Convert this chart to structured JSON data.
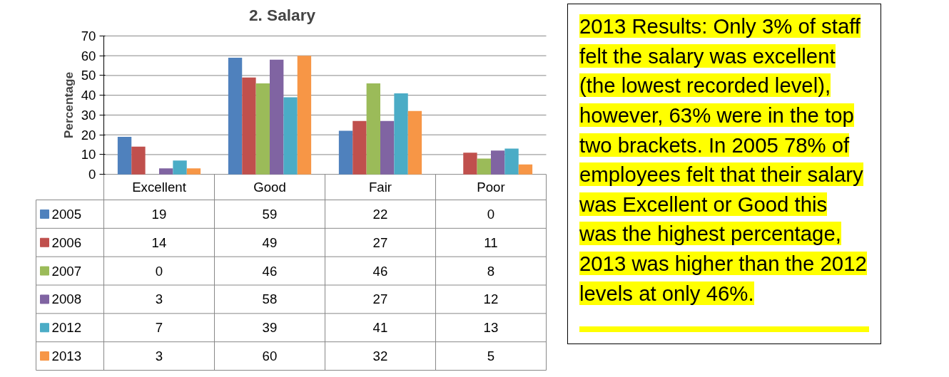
{
  "chart_data": {
    "type": "bar",
    "title": "2. Salary",
    "ylabel": "Percentage",
    "categories": [
      "Excellent",
      "Good",
      "Fair",
      "Poor"
    ],
    "series": [
      {
        "name": "2005",
        "color": "#4f81bd",
        "values": [
          19,
          59,
          22,
          0
        ]
      },
      {
        "name": "2006",
        "color": "#c0504d",
        "values": [
          14,
          49,
          27,
          11
        ]
      },
      {
        "name": "2007",
        "color": "#9bbb59",
        "values": [
          0,
          46,
          46,
          8
        ]
      },
      {
        "name": "2008",
        "color": "#8064a2",
        "values": [
          3,
          58,
          27,
          12
        ]
      },
      {
        "name": "2012",
        "color": "#4bacc6",
        "values": [
          7,
          39,
          41,
          13
        ]
      },
      {
        "name": "2013",
        "color": "#f79646",
        "values": [
          3,
          60,
          32,
          5
        ]
      }
    ],
    "ylim": [
      0,
      70
    ],
    "yticks": [
      0,
      10,
      20,
      30,
      40,
      50,
      60,
      70
    ],
    "grid": "y",
    "legend": "bottom",
    "data_labels": true,
    "annotations": [
      "2013 Results: Only 3% of staff felt the salary was excellent (the lowest recorded level), however, 63% were in the top two brackets.  In 2005 78% of employees felt that their salary was Excellent or Good this was the highest percentage, 2013 was higher than the 2012 levels at only 46%."
    ]
  }
}
